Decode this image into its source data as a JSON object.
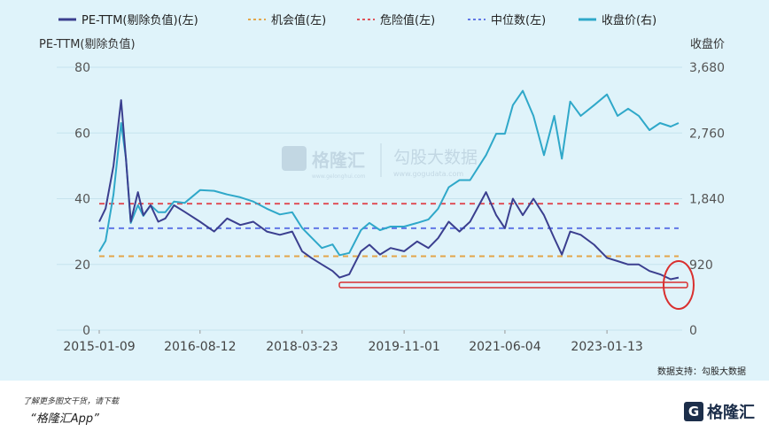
{
  "chart_data": {
    "type": "line",
    "legend": [
      "PE-TTM(剔除负值)(左)",
      "机会值(左)",
      "危险值(左)",
      "中位数(左)",
      "收盘价(右)"
    ],
    "ylabel_left": "PE-TTM(剔除负值)",
    "ylabel_right": "收盘价",
    "x_ticks": [
      "2015-01-09",
      "2016-08-12",
      "2018-03-23",
      "2019-11-01",
      "2021-06-04",
      "2023-01-13"
    ],
    "x_range": [
      "2015-01-09",
      "2024-03-01"
    ],
    "ylim_left": [
      0,
      80
    ],
    "ylim_right": [
      0,
      3680
    ],
    "yticks_left": [
      "0",
      "20",
      "40",
      "60",
      "80"
    ],
    "yticks_right": [
      "0",
      "920",
      "1,840",
      "2,760",
      "3,680"
    ],
    "reference_lines": {
      "opportunity": 22.5,
      "danger": 38.5,
      "median": 31.0
    },
    "series": [
      {
        "name": "PE-TTM(剔除负值)(左)",
        "color": "#3b3f8f",
        "axis": "left",
        "x": [
          "2015-01-09",
          "2015-02-15",
          "2015-04-01",
          "2015-05-15",
          "2015-06-12",
          "2015-07-10",
          "2015-08-20",
          "2015-09-20",
          "2015-11-01",
          "2015-12-15",
          "2016-01-25",
          "2016-03-15",
          "2016-05-15",
          "2016-08-12",
          "2016-11-01",
          "2017-01-15",
          "2017-04-01",
          "2017-06-15",
          "2017-09-01",
          "2017-11-15",
          "2018-01-25",
          "2018-03-23",
          "2018-05-15",
          "2018-07-15",
          "2018-09-15",
          "2018-10-25",
          "2018-12-20",
          "2019-02-25",
          "2019-04-15",
          "2019-06-15",
          "2019-08-15",
          "2019-11-01",
          "2020-01-15",
          "2020-03-20",
          "2020-05-15",
          "2020-07-15",
          "2020-09-15",
          "2020-11-15",
          "2021-02-15",
          "2021-04-15",
          "2021-06-04",
          "2021-07-20",
          "2021-09-15",
          "2021-11-15",
          "2022-01-15",
          "2022-03-15",
          "2022-04-28",
          "2022-06-15",
          "2022-08-15",
          "2022-10-31",
          "2023-01-13",
          "2023-03-15",
          "2023-05-15",
          "2023-07-15",
          "2023-09-15",
          "2023-11-15",
          "2024-01-15",
          "2024-03-01"
        ],
        "values": [
          33,
          37,
          50,
          70,
          52,
          33,
          42,
          35,
          38,
          33,
          34,
          38,
          36,
          33,
          30,
          34,
          32,
          33,
          30,
          29,
          30,
          24,
          22,
          20,
          18,
          16,
          17,
          24,
          26,
          23,
          25,
          24,
          27,
          25,
          28,
          33,
          30,
          33,
          42,
          35,
          31,
          40,
          35,
          40,
          35,
          28,
          23,
          30,
          29,
          26,
          22,
          21,
          20,
          20,
          18,
          17,
          15.5,
          16
        ]
      },
      {
        "name": "收盘价(右)",
        "color": "#2fa8c9",
        "axis": "right",
        "x": [
          "2015-01-09",
          "2015-02-15",
          "2015-04-01",
          "2015-05-15",
          "2015-06-12",
          "2015-07-10",
          "2015-08-20",
          "2015-09-20",
          "2015-11-01",
          "2015-12-15",
          "2016-01-25",
          "2016-03-15",
          "2016-05-15",
          "2016-08-12",
          "2016-11-01",
          "2017-01-15",
          "2017-04-01",
          "2017-06-15",
          "2017-09-01",
          "2017-11-15",
          "2018-01-25",
          "2018-03-23",
          "2018-05-15",
          "2018-07-15",
          "2018-09-15",
          "2018-10-25",
          "2018-12-20",
          "2019-02-25",
          "2019-04-15",
          "2019-06-15",
          "2019-08-15",
          "2019-11-01",
          "2020-01-15",
          "2020-03-20",
          "2020-05-15",
          "2020-07-15",
          "2020-09-15",
          "2020-11-15",
          "2021-02-15",
          "2021-04-15",
          "2021-06-04",
          "2021-07-20",
          "2021-09-15",
          "2021-11-15",
          "2022-01-15",
          "2022-03-15",
          "2022-04-28",
          "2022-06-15",
          "2022-08-15",
          "2022-10-31",
          "2023-01-13",
          "2023-03-15",
          "2023-05-15",
          "2023-07-15",
          "2023-09-15",
          "2023-11-15",
          "2024-01-15",
          "2024-03-01"
        ],
        "values": [
          1100,
          1250,
          1900,
          2900,
          2400,
          1500,
          1750,
          1600,
          1750,
          1650,
          1650,
          1800,
          1780,
          1960,
          1950,
          1900,
          1860,
          1800,
          1700,
          1620,
          1650,
          1430,
          1300,
          1150,
          1200,
          1050,
          1080,
          1400,
          1500,
          1400,
          1450,
          1450,
          1500,
          1550,
          1700,
          2000,
          2100,
          2100,
          2450,
          2750,
          2750,
          3150,
          3350,
          3000,
          2450,
          3000,
          2400,
          3200,
          3000,
          3150,
          3300,
          3000,
          3100,
          3000,
          2800,
          2900,
          2850,
          2900
        ]
      }
    ],
    "annotations": [
      "数据支持：勾股大数据"
    ]
  },
  "watermark": {
    "brand_left": "格隆汇",
    "url_left": "www.gelonghui.com",
    "brand_right": "勾股大数据",
    "url_right": "www.gogudata.com"
  },
  "footer": {
    "note": "了解更多图文干货，请下载",
    "app": "“格隆汇App”",
    "brand": "格隆汇",
    "brand_mark": "G"
  },
  "colors": {
    "pe": "#3b3f8f",
    "price": "#2fa8c9",
    "opportunity": "#e3a64a",
    "danger": "#e0525a",
    "median": "#6177e6",
    "highlight": "#d9302f",
    "background": "#dff3fa"
  }
}
